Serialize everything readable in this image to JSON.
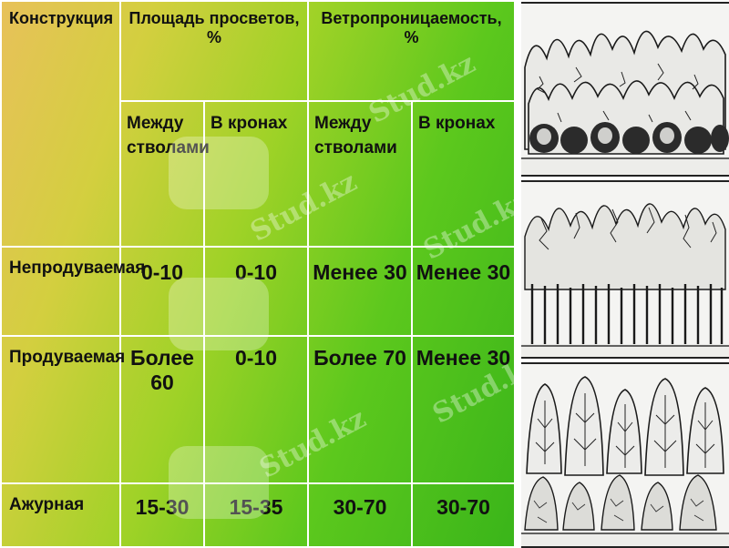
{
  "table": {
    "headers": {
      "construction": "Конструкция",
      "clear_area": "Площадь просветов, %",
      "wind_permeability": "Ветропроницаемость, %"
    },
    "subheaders": [
      "Между стволами",
      "В кронах",
      "Между стволами",
      "В кронах"
    ],
    "rows": [
      {
        "label": "Непродуваемая",
        "values": [
          "0-10",
          "0-10",
          "Менее 30",
          "Менее 30"
        ]
      },
      {
        "label": "Продуваемая",
        "values": [
          "Более 60",
          "0-10",
          "Более 70",
          "Менее 30"
        ]
      },
      {
        "label": "Ажурная",
        "values": [
          "15-30",
          "15-35",
          "30-70",
          "30-70"
        ]
      }
    ]
  },
  "watermark": "Stud.kz",
  "colors": {
    "gradient_start": "#e8c15a",
    "gradient_end": "#3ab51a",
    "grid_lines": "#ffffff"
  },
  "illustrations": [
    "dense-forest-belt",
    "windblown-forest-belt",
    "openwork-forest-belt"
  ]
}
